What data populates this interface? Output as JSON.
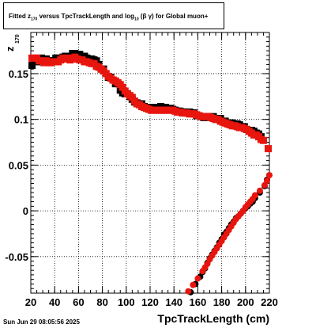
{
  "header": {
    "title_parts": [
      "Fitted  z",
      "170",
      "  versus TpcTrackLength and log",
      "10",
      " (β  γ) for Global muon+"
    ]
  },
  "footer": {
    "date": "Sun Jun 29 08:05:56 2025"
  },
  "chart_data": {
    "type": "scatter",
    "xlabel": "TpcTrackLength (cm)",
    "ylabel_main": "z",
    "ylabel_sub": "170",
    "xlim": [
      20,
      220
    ],
    "ylim": [
      -0.09,
      0.195
    ],
    "xticks": [
      20,
      40,
      60,
      80,
      100,
      120,
      140,
      160,
      180,
      200,
      220
    ],
    "yticks": [
      -0.05,
      0,
      0.05,
      0.1,
      0.15
    ],
    "ytick_labels": [
      "-0.05",
      "0",
      "0.05",
      "0.1",
      "0.15"
    ],
    "grid": true,
    "series": [
      {
        "color": "#000000",
        "marker": "square",
        "x": [
          21,
          23,
          25,
          27,
          29,
          31,
          33,
          35,
          37,
          39,
          41,
          43,
          45,
          47,
          49,
          51,
          53,
          55,
          57,
          59,
          61,
          63,
          65,
          67,
          69,
          71,
          73,
          75,
          77,
          79,
          81,
          83,
          85,
          87,
          89,
          91,
          93,
          95,
          97,
          99,
          101,
          103,
          105,
          107,
          109,
          111,
          113,
          115,
          117,
          119,
          121,
          123,
          125,
          127,
          129,
          131,
          133,
          135,
          137,
          139,
          141,
          143,
          145,
          147,
          149,
          151,
          153,
          155,
          157,
          159,
          161,
          163,
          165,
          167,
          169,
          171,
          173,
          175,
          177,
          179,
          181,
          183,
          185,
          187,
          189,
          191,
          193,
          195,
          197,
          199,
          201,
          203,
          205,
          207,
          209,
          211,
          213
        ],
        "y": [
          0.159,
          0.166,
          0.163,
          0.165,
          0.167,
          0.166,
          0.166,
          0.164,
          0.164,
          0.164,
          0.167,
          0.167,
          0.166,
          0.168,
          0.169,
          0.169,
          0.169,
          0.172,
          0.172,
          0.171,
          0.171,
          0.169,
          0.169,
          0.167,
          0.166,
          0.166,
          0.165,
          0.164,
          0.16,
          0.155,
          0.155,
          0.15,
          0.146,
          0.146,
          0.143,
          0.139,
          0.139,
          0.132,
          0.129,
          0.128,
          0.128,
          0.125,
          0.122,
          0.119,
          0.118,
          0.117,
          0.117,
          0.114,
          0.113,
          0.112,
          0.113,
          0.113,
          0.113,
          0.113,
          0.114,
          0.113,
          0.113,
          0.111,
          0.112,
          0.111,
          0.11,
          0.109,
          0.109,
          0.108,
          0.108,
          0.107,
          0.108,
          0.107,
          0.107,
          0.104,
          0.104,
          0.103,
          0.102,
          0.103,
          0.103,
          0.102,
          0.103,
          0.1,
          0.101,
          0.101,
          0.098,
          0.098,
          0.096,
          0.096,
          0.096,
          0.093,
          0.095,
          0.094,
          0.092,
          0.092,
          0.089,
          0.088,
          0.088,
          0.087,
          0.085,
          0.084,
          0.081
        ]
      },
      {
        "color": "#000000",
        "marker": "circle",
        "x": [
          154,
          158,
          162,
          164,
          166,
          168,
          170,
          172,
          174,
          176,
          178,
          180,
          182,
          184,
          186,
          188,
          190,
          192,
          194,
          196,
          198,
          200,
          202,
          204,
          206,
          208,
          212,
          216,
          218
        ],
        "y": [
          -0.089,
          -0.08,
          -0.072,
          -0.067,
          -0.063,
          -0.057,
          -0.052,
          -0.048,
          -0.044,
          -0.04,
          -0.035,
          -0.031,
          -0.026,
          -0.023,
          -0.019,
          -0.015,
          -0.012,
          -0.008,
          -0.006,
          -0.003,
          0.0,
          0.003,
          0.005,
          0.008,
          0.01,
          0.014,
          0.02,
          0.027,
          0.034
        ]
      },
      {
        "color": "#e8150e",
        "marker": "square",
        "x": [
          21,
          23,
          25,
          27,
          29,
          31,
          33,
          35,
          37,
          39,
          41,
          43,
          45,
          47,
          49,
          51,
          53,
          55,
          57,
          59,
          61,
          63,
          65,
          67,
          69,
          71,
          73,
          75,
          77,
          79,
          81,
          83,
          85,
          87,
          89,
          91,
          93,
          95,
          97,
          99,
          101,
          103,
          105,
          107,
          109,
          111,
          113,
          115,
          117,
          119,
          121,
          123,
          125,
          127,
          129,
          131,
          133,
          135,
          137,
          139,
          141,
          143,
          145,
          147,
          149,
          151,
          153,
          155,
          157,
          159,
          161,
          163,
          165,
          167,
          169,
          171,
          173,
          175,
          177,
          179,
          181,
          183,
          185,
          187,
          189,
          191,
          193,
          195,
          197,
          199,
          201,
          203,
          205,
          207,
          209,
          211,
          213,
          215,
          219
        ],
        "y": [
          0.167,
          0.167,
          0.167,
          0.164,
          0.164,
          0.162,
          0.164,
          0.162,
          0.162,
          0.163,
          0.163,
          0.163,
          0.165,
          0.167,
          0.166,
          0.167,
          0.165,
          0.167,
          0.168,
          0.166,
          0.165,
          0.165,
          0.163,
          0.163,
          0.162,
          0.161,
          0.161,
          0.158,
          0.157,
          0.155,
          0.153,
          0.15,
          0.147,
          0.145,
          0.143,
          0.142,
          0.14,
          0.138,
          0.135,
          0.131,
          0.128,
          0.126,
          0.124,
          0.12,
          0.117,
          0.116,
          0.114,
          0.113,
          0.112,
          0.111,
          0.11,
          0.11,
          0.11,
          0.11,
          0.11,
          0.11,
          0.11,
          0.11,
          0.11,
          0.11,
          0.109,
          0.108,
          0.108,
          0.107,
          0.107,
          0.107,
          0.106,
          0.106,
          0.106,
          0.105,
          0.104,
          0.103,
          0.103,
          0.103,
          0.103,
          0.102,
          0.101,
          0.1,
          0.1,
          0.098,
          0.097,
          0.096,
          0.095,
          0.094,
          0.093,
          0.093,
          0.092,
          0.091,
          0.091,
          0.09,
          0.089,
          0.087,
          0.085,
          0.083,
          0.083,
          0.081,
          0.078,
          0.077,
          0.068
        ]
      },
      {
        "color": "#e8150e",
        "marker": "circle",
        "x": [
          152,
          156,
          160,
          164,
          166,
          168,
          170,
          172,
          174,
          176,
          178,
          180,
          182,
          184,
          186,
          188,
          190,
          192,
          194,
          196,
          198,
          200,
          202,
          204,
          206,
          208,
          212,
          216,
          218,
          220
        ],
        "y": [
          -0.088,
          -0.081,
          -0.074,
          -0.066,
          -0.062,
          -0.058,
          -0.053,
          -0.049,
          -0.045,
          -0.041,
          -0.037,
          -0.033,
          -0.029,
          -0.025,
          -0.021,
          -0.017,
          -0.013,
          -0.009,
          -0.006,
          -0.003,
          0.0,
          0.004,
          0.007,
          0.01,
          0.013,
          0.017,
          0.022,
          0.028,
          0.033,
          0.039
        ]
      }
    ]
  }
}
